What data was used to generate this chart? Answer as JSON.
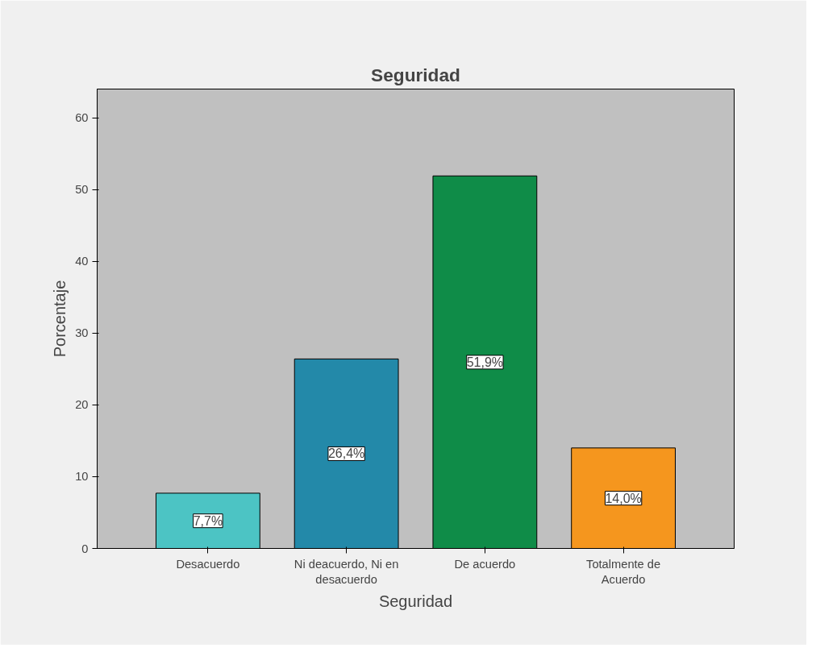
{
  "chart_data": {
    "type": "bar",
    "title": "Seguridad",
    "xlabel": "Seguridad",
    "ylabel": "Porcentaje",
    "categories": [
      "Desacuerdo",
      "Ni deacuerdo, Ni en\ndesacuerdo",
      "De acuerdo",
      "Totalmente de\nAcuerdo"
    ],
    "values": [
      7.7,
      26.4,
      51.9,
      14.0
    ],
    "colors": [
      "#4cc4c4",
      "#2389a9",
      "#0f8c48",
      "#f5961e"
    ],
    "value_labels": [
      "7,7%",
      "26,4%",
      "51,9%",
      "14,0%"
    ],
    "ylim": [
      0,
      64
    ],
    "yticks": [
      0,
      10,
      20,
      30,
      40,
      50,
      60
    ],
    "grid": false
  }
}
